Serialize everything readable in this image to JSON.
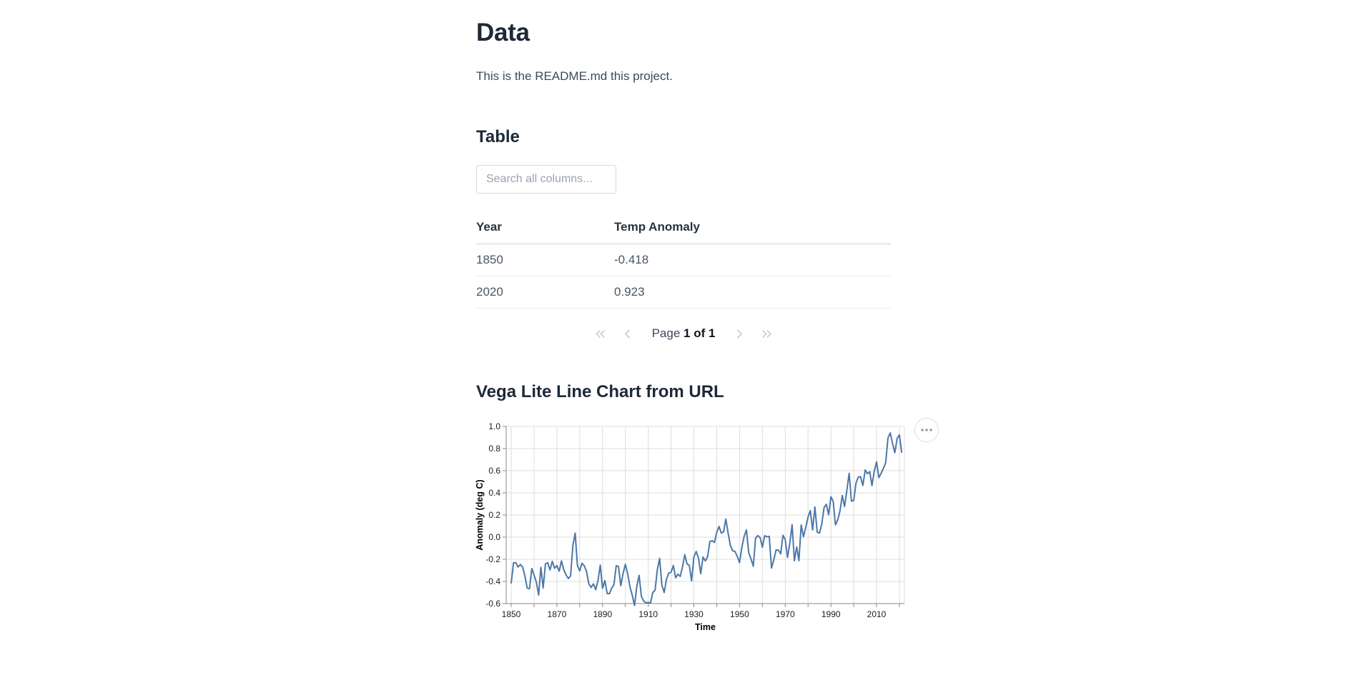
{
  "page": {
    "title": "Data",
    "readme_text": "This is the README.md this project."
  },
  "table_section": {
    "title": "Table",
    "search_placeholder": "Search all columns...",
    "search_value": "",
    "columns": [
      "Year",
      "Temp Anomaly"
    ],
    "rows": [
      [
        "1850",
        "-0.418"
      ],
      [
        "2020",
        "0.923"
      ]
    ]
  },
  "pagination": {
    "page_label": "Page ",
    "page_value": "1 of 1"
  },
  "chart_section": {
    "title": "Vega Lite Line Chart from URL"
  },
  "chart_data": {
    "type": "line",
    "title": "",
    "xlabel": "Time",
    "ylabel": "Anomaly (deg C)",
    "x_start": 1850,
    "x_end": 2021,
    "x_domain": [
      1847.8,
      2022.2
    ],
    "ylim": [
      -0.6,
      1.0
    ],
    "y_ticks": [
      1.0,
      0.8,
      0.6,
      0.4,
      0.2,
      0.0,
      -0.2,
      -0.4,
      -0.6
    ],
    "x_tick_labels": [
      1850,
      1870,
      1890,
      1910,
      1930,
      1950,
      1970,
      1990,
      2010
    ],
    "x_grid": {
      "start": 1850,
      "end": 2020,
      "step": 10
    },
    "grid": true,
    "legend": false,
    "line_color": "#4c78a8",
    "axis_color": "#888888",
    "grid_color": "#dddddd",
    "values": [
      -0.418,
      -0.233,
      -0.229,
      -0.27,
      -0.247,
      -0.271,
      -0.352,
      -0.46,
      -0.466,
      -0.284,
      -0.343,
      -0.407,
      -0.522,
      -0.273,
      -0.459,
      -0.242,
      -0.231,
      -0.297,
      -0.218,
      -0.281,
      -0.256,
      -0.308,
      -0.214,
      -0.293,
      -0.341,
      -0.374,
      -0.349,
      -0.074,
      0.036,
      -0.255,
      -0.306,
      -0.236,
      -0.259,
      -0.311,
      -0.422,
      -0.455,
      -0.422,
      -0.475,
      -0.392,
      -0.252,
      -0.462,
      -0.393,
      -0.509,
      -0.511,
      -0.46,
      -0.43,
      -0.258,
      -0.265,
      -0.439,
      -0.327,
      -0.246,
      -0.331,
      -0.449,
      -0.524,
      -0.617,
      -0.446,
      -0.345,
      -0.534,
      -0.577,
      -0.594,
      -0.589,
      -0.596,
      -0.5,
      -0.48,
      -0.294,
      -0.192,
      -0.434,
      -0.5,
      -0.38,
      -0.324,
      -0.318,
      -0.256,
      -0.367,
      -0.334,
      -0.355,
      -0.269,
      -0.158,
      -0.242,
      -0.254,
      -0.396,
      -0.18,
      -0.13,
      -0.187,
      -0.33,
      -0.18,
      -0.215,
      -0.177,
      -0.039,
      -0.033,
      -0.048,
      0.043,
      0.096,
      0.036,
      0.049,
      0.164,
      0.036,
      -0.076,
      -0.124,
      -0.129,
      -0.174,
      -0.23,
      -0.092,
      0.006,
      0.066,
      -0.14,
      -0.197,
      -0.263,
      -0.009,
      0.014,
      -0.005,
      -0.09,
      0.013,
      0.003,
      0.007,
      -0.279,
      -0.204,
      -0.116,
      -0.117,
      -0.151,
      0.017,
      -0.022,
      -0.183,
      -0.055,
      0.112,
      -0.212,
      -0.089,
      -0.212,
      0.11,
      0.003,
      0.087,
      0.182,
      0.24,
      0.065,
      0.272,
      0.046,
      0.037,
      0.118,
      0.267,
      0.297,
      0.202,
      0.365,
      0.323,
      0.111,
      0.154,
      0.238,
      0.376,
      0.276,
      0.425,
      0.577,
      0.325,
      0.331,
      0.489,
      0.543,
      0.545,
      0.467,
      0.607,
      0.572,
      0.591,
      0.466,
      0.597,
      0.68,
      0.538,
      0.577,
      0.621,
      0.672,
      0.897,
      0.941,
      0.845,
      0.763,
      0.891,
      0.923,
      0.762
    ]
  }
}
